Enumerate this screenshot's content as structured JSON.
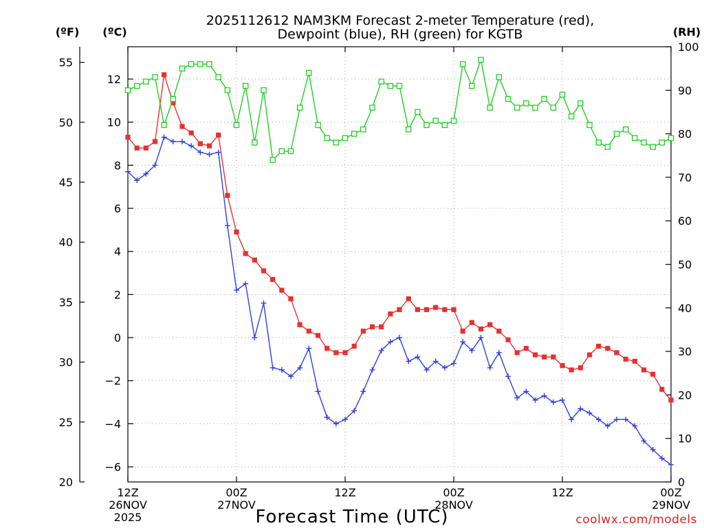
{
  "chart_data": {
    "type": "line",
    "title_line1": "2025112612 NAM3KM Forecast 2-meter Temperature (red),",
    "title_line2": "Dewpoint (blue), RH (green) for KGTB",
    "xlabel": "Forecast Time (UTC)",
    "credit": "coolwx.com/models",
    "units": {
      "fahrenheit": "(ºF)",
      "celsius": "(ºC)",
      "rh": "(RH)"
    },
    "x_range_hours": [
      0,
      60
    ],
    "x_ticks": [
      {
        "hour": 0,
        "lines": [
          "12Z",
          "26NOV",
          "2025"
        ]
      },
      {
        "hour": 12,
        "lines": [
          "00Z",
          "27NOV"
        ]
      },
      {
        "hour": 24,
        "lines": [
          "12Z"
        ]
      },
      {
        "hour": 36,
        "lines": [
          "00Z",
          "28NOV"
        ]
      },
      {
        "hour": 48,
        "lines": [
          "12Z"
        ]
      },
      {
        "hour": 60,
        "lines": [
          "00Z",
          "29NOV"
        ]
      }
    ],
    "celsius_axis": {
      "ylim": [
        -6.7,
        13.5
      ],
      "ticks": [
        -6,
        -4,
        -2,
        0,
        2,
        4,
        6,
        8,
        10,
        12
      ]
    },
    "fahrenheit_axis": {
      "ylim": [
        20,
        56.3
      ],
      "ticks": [
        20,
        25,
        30,
        35,
        40,
        45,
        50,
        55
      ]
    },
    "rh_axis": {
      "ylim": [
        0,
        100
      ],
      "ticks": [
        0,
        10,
        20,
        30,
        40,
        50,
        60,
        70,
        80,
        90,
        100
      ]
    },
    "series": [
      {
        "name": "2-meter Temperature",
        "axis": "celsius",
        "color": "#e8302f",
        "marker": "filled-square",
        "values": [
          9.3,
          8.8,
          8.8,
          9.1,
          12.2,
          10.9,
          9.8,
          9.5,
          9.0,
          8.9,
          9.4,
          6.6,
          4.9,
          3.9,
          3.6,
          3.1,
          2.7,
          2.2,
          1.8,
          0.6,
          0.3,
          0.1,
          -0.5,
          -0.7,
          -0.7,
          -0.4,
          0.3,
          0.5,
          0.5,
          1.1,
          1.3,
          1.8,
          1.3,
          1.3,
          1.4,
          1.3,
          1.3,
          0.3,
          0.7,
          0.4,
          0.6,
          0.3,
          -0.1,
          -0.7,
          -0.5,
          -0.8,
          -0.9,
          -0.9,
          -1.3,
          -1.5,
          -1.4,
          -0.8,
          -0.4,
          -0.5,
          -0.7,
          -1.0,
          -1.1,
          -1.5,
          -1.7,
          -2.4,
          -2.9
        ]
      },
      {
        "name": "Dewpoint",
        "axis": "celsius",
        "color": "#2c3fe0",
        "marker": "plus",
        "values": [
          7.7,
          7.3,
          7.6,
          8.0,
          9.3,
          9.1,
          9.1,
          8.9,
          8.6,
          8.5,
          8.6,
          5.2,
          2.2,
          2.5,
          0.0,
          1.6,
          -1.4,
          -1.5,
          -1.8,
          -1.4,
          -0.5,
          -2.5,
          -3.7,
          -4.0,
          -3.8,
          -3.4,
          -2.5,
          -1.5,
          -0.6,
          -0.2,
          0.0,
          -1.1,
          -0.9,
          -1.5,
          -1.1,
          -1.4,
          -1.2,
          -0.2,
          -0.6,
          0.0,
          -1.4,
          -0.7,
          -1.8,
          -2.8,
          -2.5,
          -2.9,
          -2.7,
          -3.0,
          -2.9,
          -3.8,
          -3.3,
          -3.5,
          -3.8,
          -4.1,
          -3.8,
          -3.8,
          -4.1,
          -4.8,
          -5.2,
          -5.6,
          -5.9
        ]
      },
      {
        "name": "Relative Humidity",
        "axis": "rh",
        "color": "#1fd01f",
        "marker": "open-square",
        "values": [
          90,
          91,
          92,
          93,
          82,
          88,
          95,
          96,
          96,
          96,
          93,
          90,
          82,
          91,
          78,
          90,
          74,
          76,
          76,
          86,
          94,
          82,
          79,
          78,
          79,
          80,
          81,
          86,
          92,
          91,
          91,
          81,
          85,
          82,
          83,
          82,
          83,
          96,
          91,
          97,
          86,
          93,
          88,
          86,
          87,
          86,
          88,
          86,
          89,
          84,
          87,
          82,
          78,
          77,
          80,
          81,
          79,
          78,
          77,
          78,
          79
        ]
      }
    ]
  }
}
